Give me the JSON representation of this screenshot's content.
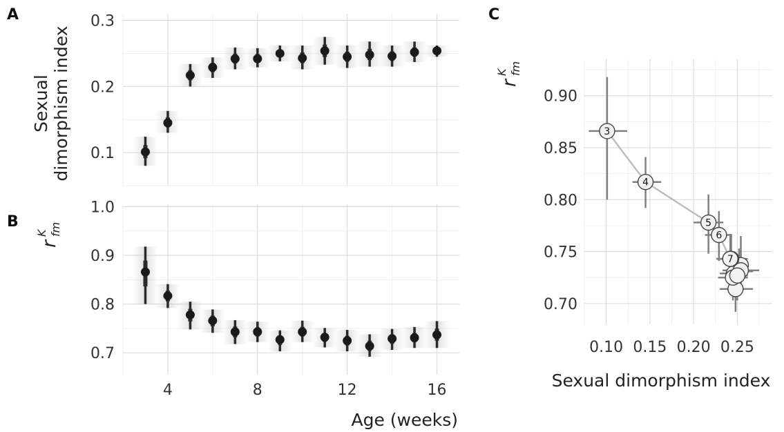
{
  "panel_labels": [
    "A",
    "B",
    "C"
  ],
  "colors": {
    "points": "#1a1a1a",
    "error": "#2a2a2a",
    "c_error": "#7f7f7f",
    "c_line": "#bdbdbd",
    "c_circle_fill": "#f2f2f2",
    "c_circle_stroke": "#444444"
  },
  "chart_data": [
    {
      "panel": "A",
      "type": "scatter",
      "title": "",
      "xlabel": "",
      "ylabel": [
        "Sexual",
        "dimorphism index"
      ],
      "xlim": [
        2,
        17
      ],
      "ylim": [
        0.05,
        0.31
      ],
      "yticks": [
        "0.1",
        "0.2",
        "0.3"
      ],
      "xticks": [],
      "x": [
        3,
        4,
        5,
        6,
        7,
        8,
        9,
        10,
        11,
        12,
        13,
        14,
        15,
        16
      ],
      "y": [
        0.101,
        0.145,
        0.217,
        0.229,
        0.242,
        0.242,
        0.25,
        0.243,
        0.254,
        0.245,
        0.248,
        0.246,
        0.252,
        0.254
      ],
      "y_low": [
        0.08,
        0.13,
        0.2,
        0.213,
        0.226,
        0.229,
        0.238,
        0.226,
        0.233,
        0.228,
        0.23,
        0.23,
        0.237,
        0.245
      ],
      "y_high": [
        0.124,
        0.163,
        0.234,
        0.244,
        0.259,
        0.258,
        0.262,
        0.262,
        0.275,
        0.262,
        0.268,
        0.262,
        0.268,
        0.262
      ]
    },
    {
      "panel": "B",
      "type": "scatter",
      "title": "",
      "xlabel": "Age (weeks)",
      "ylabel": [
        "r",
        "K",
        "fm"
      ],
      "xlim": [
        2,
        17
      ],
      "ylim": [
        0.655,
        1.005
      ],
      "yticks": [
        "0.7",
        "0.8",
        "0.9",
        "1.0"
      ],
      "xticks": [
        "4",
        "8",
        "12",
        "16"
      ],
      "x": [
        3,
        4,
        5,
        6,
        7,
        8,
        9,
        10,
        11,
        12,
        13,
        14,
        15,
        16
      ],
      "y": [
        0.866,
        0.817,
        0.778,
        0.766,
        0.743,
        0.743,
        0.727,
        0.743,
        0.732,
        0.725,
        0.714,
        0.729,
        0.731,
        0.737
      ],
      "y_low": [
        0.8,
        0.792,
        0.748,
        0.741,
        0.718,
        0.722,
        0.703,
        0.722,
        0.711,
        0.703,
        0.692,
        0.706,
        0.71,
        0.71
      ],
      "y_high": [
        0.918,
        0.841,
        0.805,
        0.789,
        0.767,
        0.764,
        0.746,
        0.766,
        0.751,
        0.747,
        0.738,
        0.749,
        0.753,
        0.765
      ]
    },
    {
      "panel": "C",
      "type": "scatter",
      "title": "",
      "xlabel": "Sexual dimorphism index",
      "ylabel": [
        "r",
        "K",
        "fm"
      ],
      "xlim": [
        0.075,
        0.29
      ],
      "ylim": [
        0.68,
        0.935
      ],
      "xticks": [
        "0.10",
        "0.15",
        "0.20",
        "0.25"
      ],
      "yticks": [
        "0.70",
        "0.75",
        "0.80",
        "0.85",
        "0.90"
      ],
      "point_labels": [
        "3",
        "4",
        "5",
        "6",
        "7",
        "",
        "",
        "",
        "",
        "",
        "",
        "",
        "",
        ""
      ],
      "x": [
        0.101,
        0.145,
        0.217,
        0.229,
        0.242,
        0.242,
        0.25,
        0.243,
        0.254,
        0.245,
        0.248,
        0.246,
        0.252,
        0.254
      ],
      "y": [
        0.866,
        0.817,
        0.778,
        0.766,
        0.743,
        0.743,
        0.727,
        0.743,
        0.732,
        0.725,
        0.714,
        0.729,
        0.731,
        0.737
      ],
      "x_low": [
        0.08,
        0.13,
        0.2,
        0.213,
        0.226,
        0.229,
        0.238,
        0.226,
        0.233,
        0.228,
        0.23,
        0.23,
        0.237,
        0.245
      ],
      "x_high": [
        0.124,
        0.163,
        0.234,
        0.244,
        0.259,
        0.258,
        0.262,
        0.262,
        0.275,
        0.262,
        0.268,
        0.262,
        0.268,
        0.262
      ],
      "y_low": [
        0.8,
        0.792,
        0.748,
        0.741,
        0.718,
        0.722,
        0.703,
        0.722,
        0.711,
        0.703,
        0.692,
        0.706,
        0.71,
        0.71
      ],
      "y_high": [
        0.918,
        0.841,
        0.805,
        0.789,
        0.767,
        0.764,
        0.746,
        0.766,
        0.751,
        0.747,
        0.738,
        0.749,
        0.753,
        0.765
      ]
    }
  ]
}
